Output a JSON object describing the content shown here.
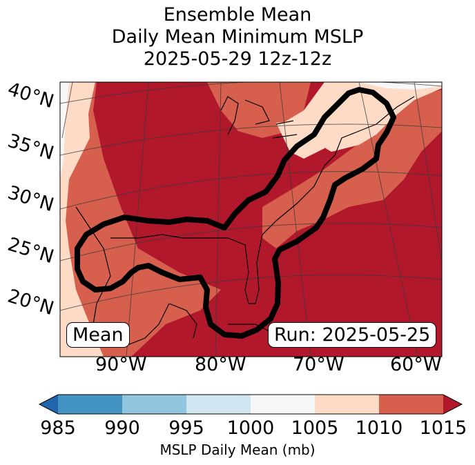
{
  "title": {
    "line1": "Ensemble Mean",
    "line2": "Daily Mean Minimum MSLP",
    "line3": "2025-05-29 12z-12z"
  },
  "latitude_labels": [
    "40°N",
    "35°N",
    "30°N",
    "25°N",
    "20°N"
  ],
  "longitude_labels": [
    "90°W",
    "80°W",
    "70°W",
    "60°W"
  ],
  "insets": {
    "left": "Mean",
    "right": "Run: 2025-05-25"
  },
  "colorbar": {
    "ticks": [
      "985",
      "990",
      "995",
      "1000",
      "1005",
      "1010",
      "1015"
    ],
    "label": "MSLP Daily Mean (mb)",
    "colors": [
      "#2166ac",
      "#4393c3",
      "#92c5de",
      "#d1e5f0",
      "#f7f7f7",
      "#fddbc7",
      "#d6604d",
      "#b2182b"
    ]
  },
  "map_colors": {
    "c1000_1005": "#f7f7f7",
    "c1005_1010": "#fddbc7",
    "c1010_1015": "#d6604d",
    "c1015_plus": "#b2182b",
    "outline": "#000000"
  }
}
